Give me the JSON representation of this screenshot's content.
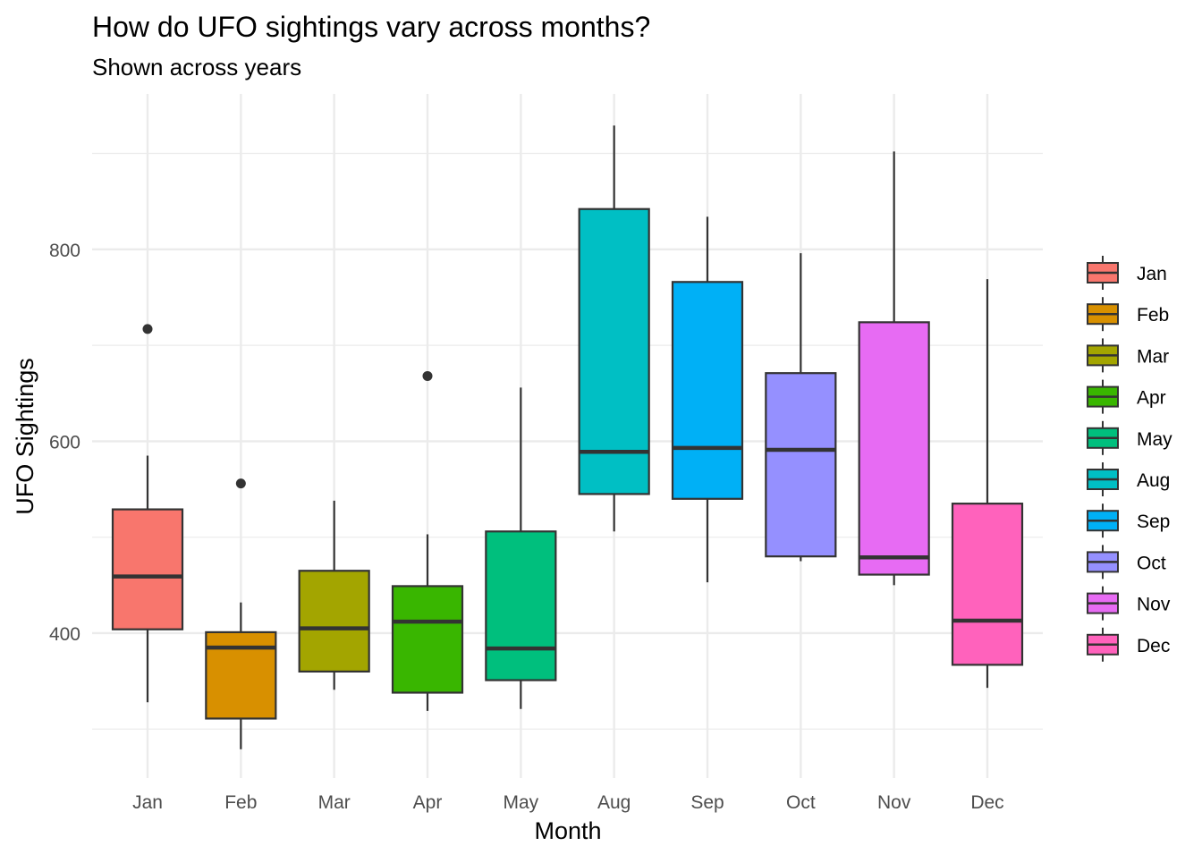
{
  "chart_data": {
    "type": "boxplot",
    "title": "How do UFO sightings vary across months?",
    "subtitle": "Shown across years",
    "xlabel": "Month",
    "ylabel": "UFO Sightings",
    "ylim": [
      249,
      962
    ],
    "yticks": [
      400,
      600,
      800
    ],
    "grid": true,
    "legend_position": "right",
    "categories": [
      "Jan",
      "Feb",
      "Mar",
      "Apr",
      "May",
      "Aug",
      "Sep",
      "Oct",
      "Nov",
      "Dec"
    ],
    "colors": [
      "#F8766D",
      "#D89000",
      "#A3A500",
      "#39B600",
      "#00BF7D",
      "#00BFC4",
      "#00B0F6",
      "#9590FF",
      "#E76BF3",
      "#FF62BC"
    ],
    "boxes": [
      {
        "min": 328,
        "q1": 404,
        "median": 459,
        "q3": 529,
        "max": 585,
        "outliers": [
          717
        ]
      },
      {
        "min": 279,
        "q1": 311,
        "median": 385,
        "q3": 401,
        "max": 432,
        "outliers": [
          556
        ]
      },
      {
        "min": 341,
        "q1": 360,
        "median": 405,
        "q3": 465,
        "max": 538,
        "outliers": []
      },
      {
        "min": 319,
        "q1": 338,
        "median": 412,
        "q3": 449,
        "max": 503,
        "outliers": [
          668
        ]
      },
      {
        "min": 321,
        "q1": 351,
        "median": 384,
        "q3": 506,
        "max": 656,
        "outliers": []
      },
      {
        "min": 506,
        "q1": 545,
        "median": 589,
        "q3": 842,
        "max": 929,
        "outliers": []
      },
      {
        "min": 453,
        "q1": 540,
        "median": 593,
        "q3": 766,
        "max": 834,
        "outliers": []
      },
      {
        "min": 475,
        "q1": 480,
        "median": 591,
        "q3": 671,
        "max": 796,
        "outliers": []
      },
      {
        "min": 450,
        "q1": 461,
        "median": 479,
        "q3": 724,
        "max": 902,
        "outliers": []
      },
      {
        "min": 343,
        "q1": 367,
        "median": 413,
        "q3": 535,
        "max": 769,
        "outliers": []
      }
    ]
  }
}
